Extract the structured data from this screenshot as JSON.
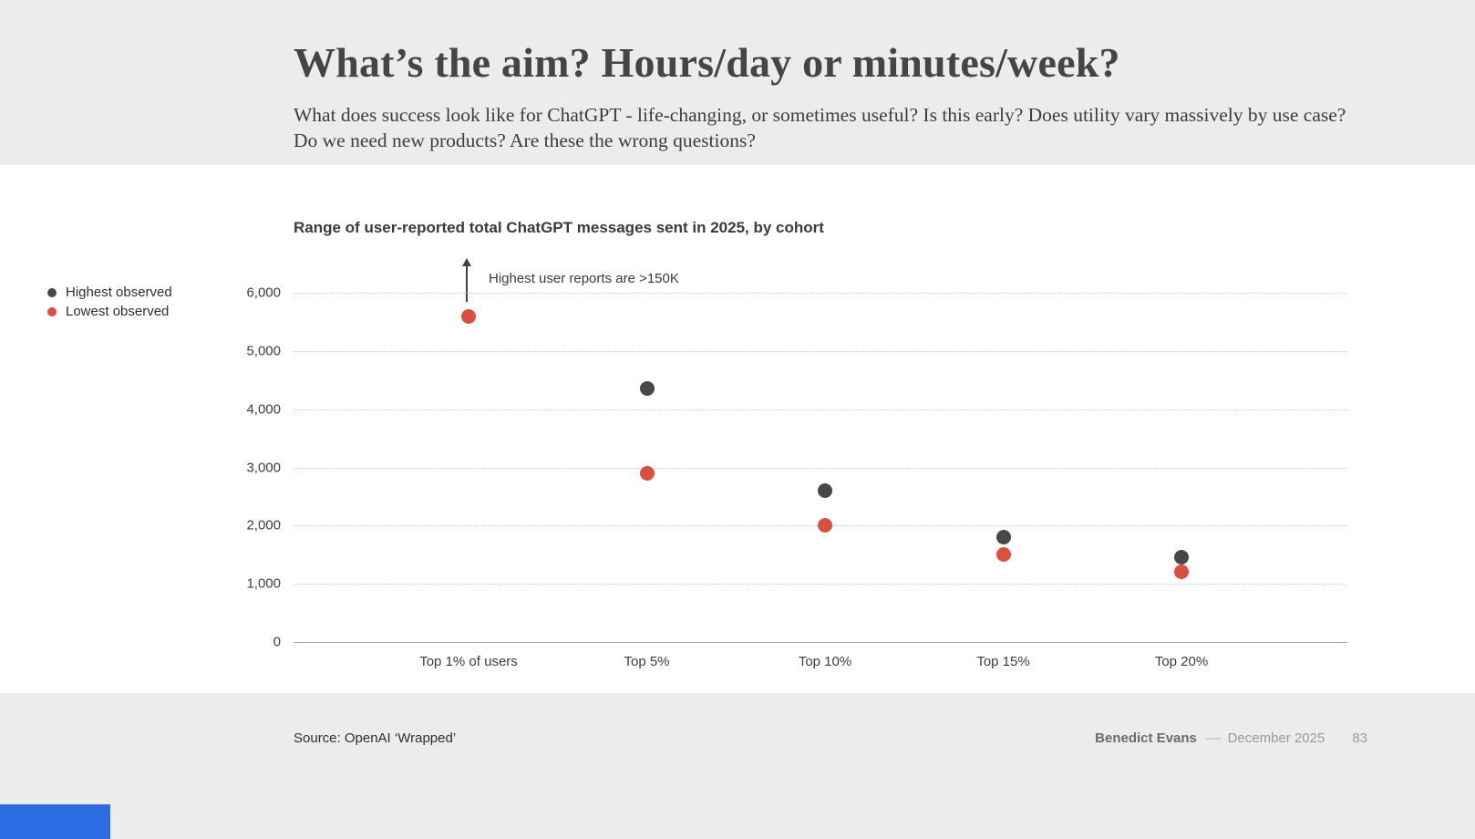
{
  "slide": {
    "title": "What’s the aim? Hours/day or minutes/week?",
    "subtitle": "What does success look like for ChatGPT - life-changing, or sometimes useful? Is this early? Does utility vary massively by use case? Do we need new products? Are these the wrong questions?"
  },
  "chart_data": {
    "type": "scatter",
    "title": "Range of user-reported total ChatGPT messages sent in 2025, by cohort",
    "categories": [
      "Top 1% of users",
      "Top 5%",
      "Top 10%",
      "Top 15%",
      "Top 20%"
    ],
    "series": [
      {
        "name": "Highest observed",
        "color": "#474747",
        "values": [
          null,
          4350,
          2600,
          1800,
          1450
        ]
      },
      {
        "name": "Lowest observed",
        "color": "#d9503f",
        "values": [
          5600,
          2900,
          2000,
          1500,
          1200
        ]
      }
    ],
    "annotation": "Highest user reports are >150K",
    "annotation_note": "Highest value for Top 1% cohort is above chart range (>150K), shown as upward arrow",
    "ylim": [
      0,
      6000
    ],
    "yticks": [
      0,
      1000,
      2000,
      3000,
      4000,
      5000,
      6000
    ],
    "ytick_labels": [
      "0",
      "1,000",
      "2,000",
      "3,000",
      "4,000",
      "5,000",
      "6,000"
    ],
    "grid": "horizontal dotted",
    "legend_position": "left"
  },
  "footer": {
    "source": "Source: OpenAI ‘Wrapped’",
    "author": "Benedict Evans",
    "separator": "––",
    "date": "December 2025",
    "page": "83"
  },
  "colors": {
    "accent_blue": "#2b6ce2",
    "band_gray": "#ececec"
  }
}
